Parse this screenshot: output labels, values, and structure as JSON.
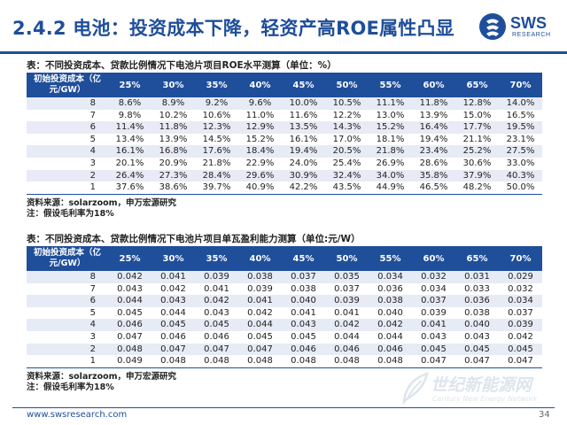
{
  "header": {
    "title": "2.4.2 电池：投资成本下降，轻资产高ROE属性凸显",
    "logo_name": "SWS",
    "logo_sub": "RESEARCH"
  },
  "colors": {
    "brand": "#1f4e9a",
    "row_band": "#e6ebf5"
  },
  "table1": {
    "caption": "表：不同投资成本、贷款比例情况下电池片项目ROE水平测算（单位：%）",
    "corner": "初始投资成本（亿元/GW）",
    "columns": [
      "25%",
      "30%",
      "35%",
      "40%",
      "45%",
      "50%",
      "55%",
      "60%",
      "65%",
      "70%"
    ],
    "rows": [
      {
        "cost": "8",
        "values": [
          "8.6%",
          "8.9%",
          "9.2%",
          "9.6%",
          "10.0%",
          "10.5%",
          "11.1%",
          "11.8%",
          "12.8%",
          "14.0%"
        ]
      },
      {
        "cost": "7",
        "values": [
          "9.8%",
          "10.2%",
          "10.6%",
          "11.0%",
          "11.6%",
          "12.2%",
          "13.0%",
          "13.9%",
          "15.0%",
          "16.5%"
        ]
      },
      {
        "cost": "6",
        "values": [
          "11.4%",
          "11.8%",
          "12.3%",
          "12.9%",
          "13.5%",
          "14.3%",
          "15.2%",
          "16.4%",
          "17.7%",
          "19.5%"
        ]
      },
      {
        "cost": "5",
        "values": [
          "13.4%",
          "13.9%",
          "14.5%",
          "15.2%",
          "16.1%",
          "17.0%",
          "18.1%",
          "19.4%",
          "21.1%",
          "23.1%"
        ]
      },
      {
        "cost": "4",
        "values": [
          "16.1%",
          "16.8%",
          "17.6%",
          "18.4%",
          "19.4%",
          "20.5%",
          "21.8%",
          "23.4%",
          "25.2%",
          "27.5%"
        ]
      },
      {
        "cost": "3",
        "values": [
          "20.1%",
          "20.9%",
          "21.8%",
          "22.9%",
          "24.0%",
          "25.4%",
          "26.9%",
          "28.6%",
          "30.6%",
          "33.0%"
        ]
      },
      {
        "cost": "2",
        "values": [
          "26.4%",
          "27.3%",
          "28.4%",
          "29.6%",
          "30.9%",
          "32.4%",
          "34.0%",
          "35.8%",
          "37.9%",
          "40.3%"
        ]
      },
      {
        "cost": "1",
        "values": [
          "37.6%",
          "38.6%",
          "39.7%",
          "40.9%",
          "42.2%",
          "43.5%",
          "44.9%",
          "46.5%",
          "48.2%",
          "50.0%"
        ]
      }
    ],
    "source": "资料来源：solarzoom，申万宏源研究",
    "note": "注：假设毛利率为18%"
  },
  "table2": {
    "caption": "表：不同投资成本、贷款比例情况下电池片项目单瓦盈利能力测算（单位:元/W）",
    "corner": "初始投资成本（亿元/GW）",
    "columns": [
      "25%",
      "30%",
      "35%",
      "40%",
      "45%",
      "50%",
      "55%",
      "60%",
      "65%",
      "70%"
    ],
    "rows": [
      {
        "cost": "8",
        "values": [
          "0.042",
          "0.041",
          "0.039",
          "0.038",
          "0.037",
          "0.035",
          "0.034",
          "0.032",
          "0.031",
          "0.029"
        ]
      },
      {
        "cost": "7",
        "values": [
          "0.043",
          "0.042",
          "0.041",
          "0.039",
          "0.038",
          "0.037",
          "0.036",
          "0.034",
          "0.033",
          "0.032"
        ]
      },
      {
        "cost": "6",
        "values": [
          "0.044",
          "0.043",
          "0.042",
          "0.041",
          "0.040",
          "0.039",
          "0.038",
          "0.037",
          "0.036",
          "0.034"
        ]
      },
      {
        "cost": "5",
        "values": [
          "0.045",
          "0.044",
          "0.043",
          "0.042",
          "0.041",
          "0.041",
          "0.040",
          "0.039",
          "0.038",
          "0.037"
        ]
      },
      {
        "cost": "4",
        "values": [
          "0.046",
          "0.045",
          "0.045",
          "0.044",
          "0.043",
          "0.042",
          "0.042",
          "0.041",
          "0.040",
          "0.039"
        ]
      },
      {
        "cost": "3",
        "values": [
          "0.047",
          "0.046",
          "0.046",
          "0.045",
          "0.045",
          "0.044",
          "0.044",
          "0.043",
          "0.043",
          "0.042"
        ]
      },
      {
        "cost": "2",
        "values": [
          "0.048",
          "0.047",
          "0.047",
          "0.047",
          "0.046",
          "0.046",
          "0.046",
          "0.045",
          "0.045",
          "0.045"
        ]
      },
      {
        "cost": "1",
        "values": [
          "0.049",
          "0.048",
          "0.048",
          "0.048",
          "0.048",
          "0.048",
          "0.048",
          "0.047",
          "0.047",
          "0.047"
        ]
      }
    ],
    "source": "资料来源：solarzoom，申万宏源研究",
    "note": "注：假设毛利率为18%"
  },
  "footer": {
    "url": "www.swsresearch.com",
    "page": "34",
    "watermark_cn": "世纪新能源网",
    "watermark_en": "Century New Energy Network"
  }
}
